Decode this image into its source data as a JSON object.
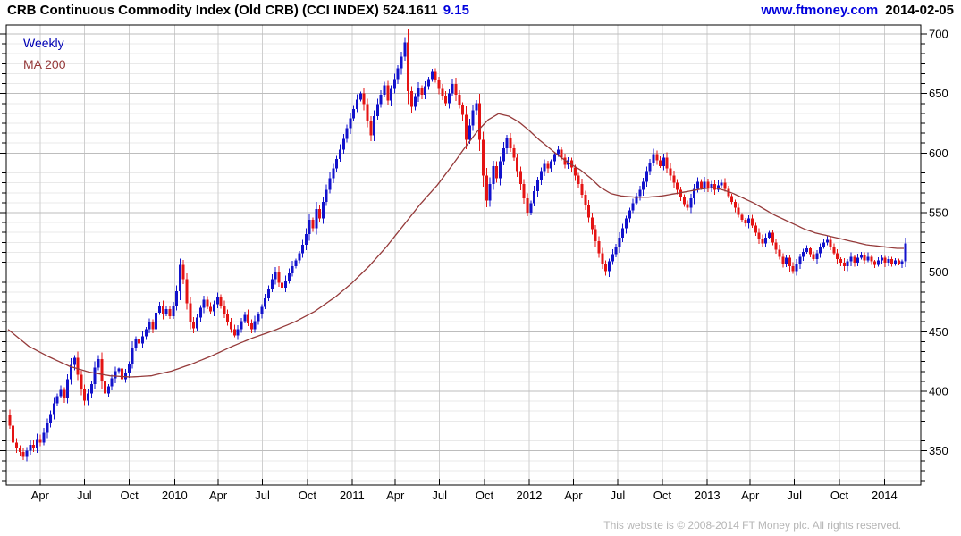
{
  "header": {
    "title": "CRB Continuous Commodity Index (Old CRB) (CCI INDEX) 524.1611",
    "change": "9.15",
    "site": "www.ftmoney.com",
    "date": "2014-02-05"
  },
  "legend": {
    "timeframe": "Weekly",
    "ma_label": "MA 200"
  },
  "footer": {
    "copyright": "This website is © 2008-2014 FT Money plc. All rights reserved."
  },
  "colors": {
    "up": "#1212cc",
    "down": "#e41414",
    "ma": "#953a3a",
    "grid_minor": "#e9e9e9",
    "grid_major": "#bdbdbd",
    "grid_vert": "#cfcfcf",
    "axis": "#000000",
    "label": "#000000",
    "link_blue": "#0000dd",
    "legend_weekly": "#0000b4",
    "footer_gray": "#b5b5b5",
    "background": "#ffffff"
  },
  "chart_data": {
    "type": "candlestick",
    "series_name": "CCI INDEX weekly",
    "timeframe": "Weekly",
    "overlay": "MA 200",
    "last_close": 524.1611,
    "last_change": 9.15,
    "first_open": 380,
    "y_axis": {
      "ticks": [
        350,
        400,
        450,
        500,
        550,
        600,
        650,
        700
      ],
      "minor_step_points": 8.3333
    },
    "x_labels": [
      [
        "Apr",
        9.4
      ],
      [
        "Jul",
        22.4
      ],
      [
        "Oct",
        35.6
      ],
      [
        "2010",
        48.9
      ],
      [
        "Apr",
        61.7
      ],
      [
        "Jul",
        74.7
      ],
      [
        "Oct",
        87.9
      ],
      [
        "2011",
        101.0
      ],
      [
        "Apr",
        113.7
      ],
      [
        "Jul",
        126.7
      ],
      [
        "Oct",
        139.9
      ],
      [
        "2012",
        153.0
      ],
      [
        "Apr",
        166.0
      ],
      [
        "Jul",
        179.0
      ],
      [
        "Oct",
        192.1
      ],
      [
        "2013",
        205.3
      ],
      [
        "Apr",
        217.9
      ],
      [
        "Jul",
        230.9
      ],
      [
        "Oct",
        244.1
      ],
      [
        "2014",
        257.3
      ]
    ],
    "closes": [
      371,
      357,
      352,
      349,
      345,
      350,
      355,
      352,
      360,
      357,
      365,
      373,
      381,
      390,
      396,
      401,
      394,
      410,
      422,
      428,
      414,
      402,
      392,
      398,
      406,
      420,
      427,
      409,
      398,
      404,
      411,
      417,
      419,
      410,
      415,
      423,
      436,
      444,
      440,
      446,
      452,
      458,
      452,
      466,
      472,
      465,
      469,
      463,
      472,
      484,
      506,
      494,
      474,
      458,
      453,
      462,
      470,
      477,
      471,
      467,
      473,
      479,
      472,
      465,
      458,
      452,
      447,
      452,
      459,
      464,
      457,
      452,
      459,
      465,
      471,
      478,
      486,
      494,
      500,
      491,
      487,
      493,
      499,
      505,
      510,
      516,
      523,
      532,
      544,
      537,
      553,
      545,
      559,
      569,
      579,
      587,
      595,
      603,
      612,
      621,
      629,
      637,
      645,
      650,
      641,
      627,
      615,
      631,
      641,
      649,
      657,
      644,
      654,
      662,
      671,
      681,
      693,
      652,
      639,
      647,
      655,
      649,
      656,
      662,
      668,
      661,
      654,
      648,
      642,
      650,
      658,
      649,
      640,
      632,
      611,
      623,
      636,
      642,
      611,
      581,
      560,
      574,
      589,
      579,
      593,
      604,
      613,
      604,
      596,
      585,
      574,
      562,
      550,
      558,
      568,
      577,
      585,
      591,
      587,
      593,
      599,
      603,
      596,
      590,
      594,
      588,
      581,
      574,
      565,
      556,
      546,
      536,
      526,
      516,
      507,
      501,
      509,
      515,
      521,
      529,
      537,
      545,
      552,
      558,
      564,
      569,
      576,
      585,
      592,
      599,
      594,
      589,
      596,
      587,
      581,
      575,
      569,
      563,
      557,
      554,
      562,
      570,
      576,
      571,
      576,
      571,
      574,
      569,
      573,
      575,
      570,
      564,
      559,
      554,
      548,
      544,
      541,
      545,
      539,
      533,
      528,
      524,
      529,
      533,
      525,
      519,
      513,
      507,
      512,
      505,
      501,
      507,
      513,
      517,
      520,
      515,
      511,
      516,
      521,
      525,
      527,
      521,
      516,
      511,
      508,
      505,
      509,
      513,
      508,
      512,
      514,
      510,
      513,
      509,
      506,
      510,
      512,
      508,
      511,
      507,
      510,
      507,
      509,
      524
    ],
    "ma200_anchors": [
      [
        0,
        452
      ],
      [
        6,
        438
      ],
      [
        12,
        429
      ],
      [
        18,
        421
      ],
      [
        24,
        416
      ],
      [
        30,
        413
      ],
      [
        36,
        412
      ],
      [
        42,
        413
      ],
      [
        48,
        417
      ],
      [
        54,
        423
      ],
      [
        60,
        430
      ],
      [
        66,
        438
      ],
      [
        72,
        445
      ],
      [
        78,
        451
      ],
      [
        84,
        458
      ],
      [
        90,
        467
      ],
      [
        96,
        479
      ],
      [
        101,
        491
      ],
      [
        106,
        505
      ],
      [
        111,
        521
      ],
      [
        116,
        539
      ],
      [
        121,
        557
      ],
      [
        126,
        573
      ],
      [
        131,
        592
      ],
      [
        135,
        608
      ],
      [
        138,
        619
      ],
      [
        141,
        628
      ],
      [
        144,
        633
      ],
      [
        147,
        631
      ],
      [
        150,
        626
      ],
      [
        153,
        619
      ],
      [
        156,
        611
      ],
      [
        159,
        604
      ],
      [
        162,
        597
      ],
      [
        165,
        591
      ],
      [
        168,
        586
      ],
      [
        171,
        579
      ],
      [
        174,
        571
      ],
      [
        177,
        566
      ],
      [
        180,
        564
      ],
      [
        184,
        563
      ],
      [
        188,
        563
      ],
      [
        192,
        564
      ],
      [
        196,
        566
      ],
      [
        200,
        568
      ],
      [
        204,
        570
      ],
      [
        207,
        571
      ],
      [
        210,
        569
      ],
      [
        213,
        566
      ],
      [
        216,
        562
      ],
      [
        219,
        558
      ],
      [
        222,
        553
      ],
      [
        225,
        548
      ],
      [
        228,
        544
      ],
      [
        231,
        540
      ],
      [
        234,
        536
      ],
      [
        237,
        533
      ],
      [
        240,
        531
      ],
      [
        243,
        529
      ],
      [
        246,
        527
      ],
      [
        249,
        525
      ],
      [
        252,
        523
      ],
      [
        255,
        522
      ],
      [
        258,
        521
      ],
      [
        261,
        520
      ],
      [
        263,
        520
      ]
    ]
  }
}
